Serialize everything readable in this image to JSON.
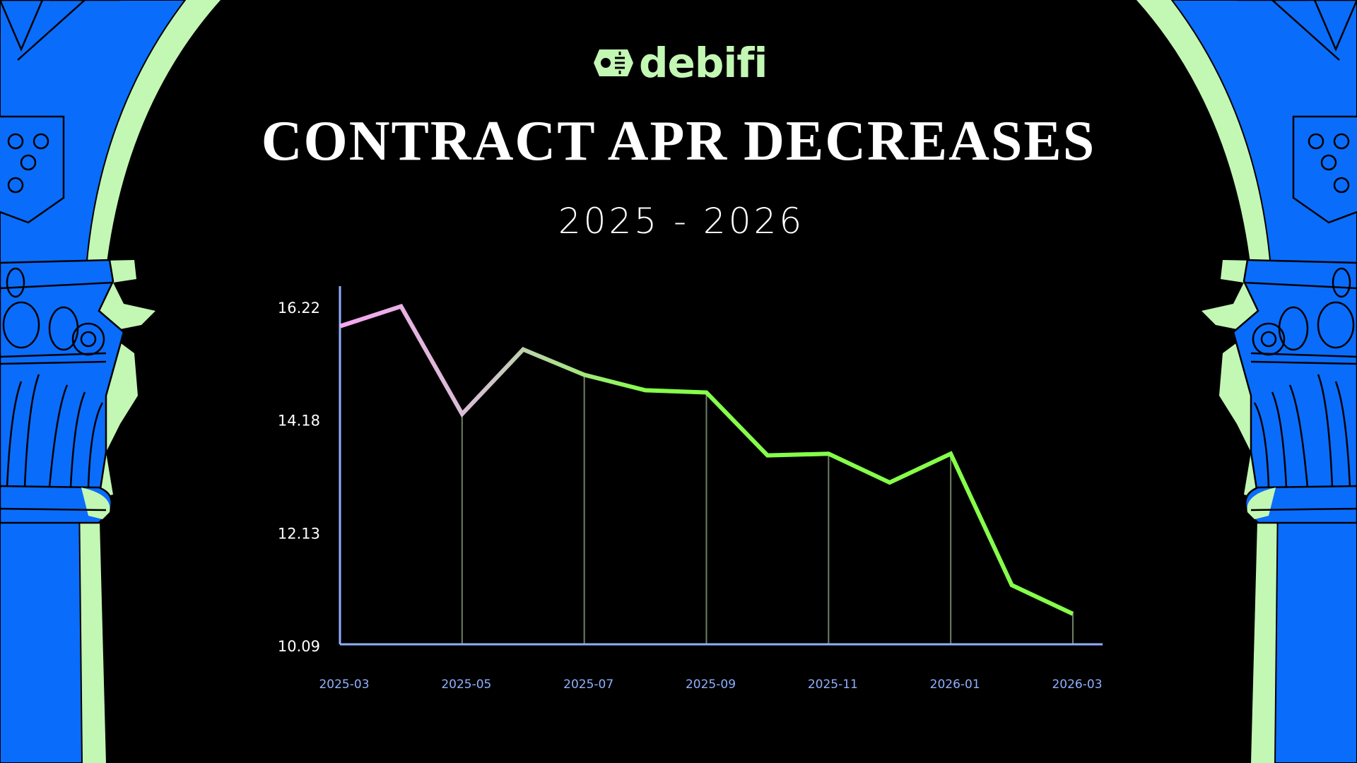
{
  "brand": {
    "name": "debifi",
    "color": "#c3f7b4"
  },
  "colors": {
    "arch_blue": "#0a6cfa",
    "arch_green": "#c3f7b4",
    "background": "#000000",
    "axis": "#8fb0ff",
    "line_start": "#f7a6f2",
    "line_end": "#86ff4a",
    "droplines": "#6f7f63"
  },
  "chart_data": {
    "type": "line",
    "title": "CONTRACT APR DECREASES",
    "subtitle": "2025 - 2026",
    "xlabel": "",
    "ylabel": "",
    "x": [
      "2025-03",
      "2025-04",
      "2025-05",
      "2025-06",
      "2025-07",
      "2025-08",
      "2025-09",
      "2025-10",
      "2025-11",
      "2025-12",
      "2026-01",
      "2026-02",
      "2026-03"
    ],
    "values": [
      15.89,
      16.25,
      14.3,
      15.47,
      15.01,
      14.73,
      14.69,
      13.55,
      13.58,
      13.06,
      13.58,
      11.2,
      10.68
    ],
    "x_tick_labels": [
      "2025-03",
      "2025-05",
      "2025-07",
      "2025-09",
      "2025-11",
      "2026-01",
      "2026-03"
    ],
    "y_tick_labels": [
      "16.22",
      "14.18",
      "12.13",
      "10.09"
    ],
    "yticks": [
      16.22,
      14.18,
      12.13,
      10.09
    ],
    "ylim": [
      10.09,
      16.6
    ],
    "grid": false,
    "droplines_at": [
      "2025-05",
      "2025-07",
      "2025-09",
      "2025-11",
      "2026-01",
      "2026-03"
    ]
  }
}
